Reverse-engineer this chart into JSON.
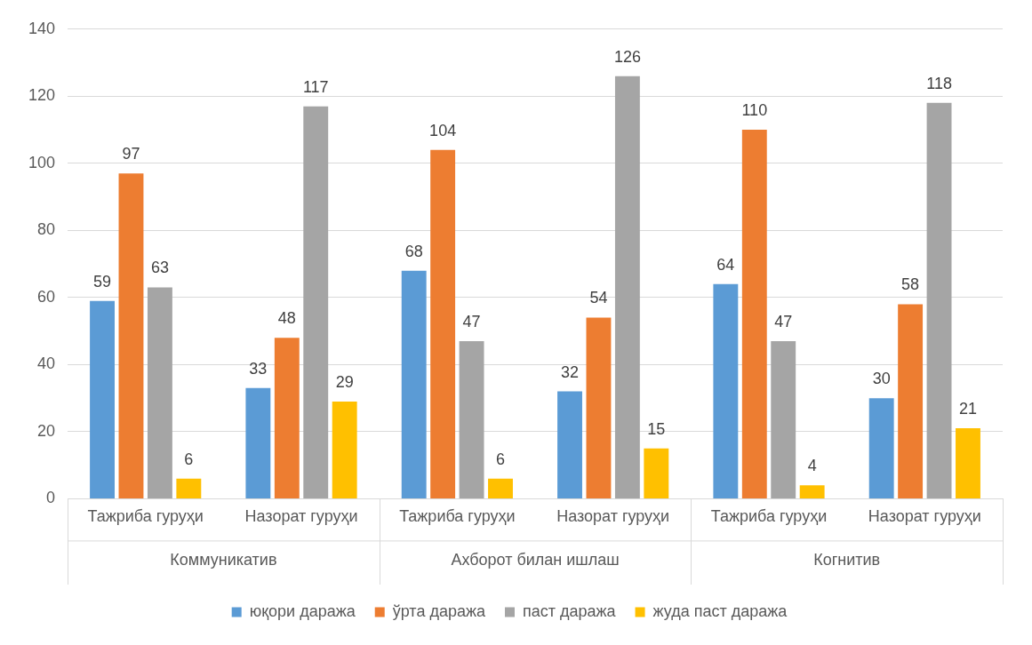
{
  "chart_data": {
    "type": "bar",
    "categories": [
      "Тажриба гуруҳи",
      "Назорат гуруҳи",
      "Тажриба гуруҳи",
      "Назорат гуруҳи",
      "Тажриба гуруҳи",
      "Назорат гуруҳи"
    ],
    "annotations": [
      "Коммуникатив",
      "Ахборот билан ишлаш",
      "Когнитив"
    ],
    "series": [
      {
        "name": "юқори даража",
        "color": "#5b9bd5",
        "values": [
          59,
          33,
          68,
          32,
          64,
          30
        ]
      },
      {
        "name": "ўрта даража",
        "color": "#ed7d31",
        "values": [
          97,
          48,
          104,
          54,
          110,
          58
        ]
      },
      {
        "name": "паст даража",
        "color": "#a5a5a5",
        "values": [
          63,
          117,
          47,
          126,
          47,
          118
        ]
      },
      {
        "name": "жуда паст даража",
        "color": "#ffc000",
        "values": [
          6,
          29,
          6,
          15,
          4,
          21
        ]
      }
    ],
    "ylim": [
      0,
      140
    ],
    "yticks": [
      0,
      20,
      40,
      60,
      80,
      100,
      120,
      140
    ],
    "grid": "y",
    "legend": "bottom",
    "data_labels": true
  }
}
